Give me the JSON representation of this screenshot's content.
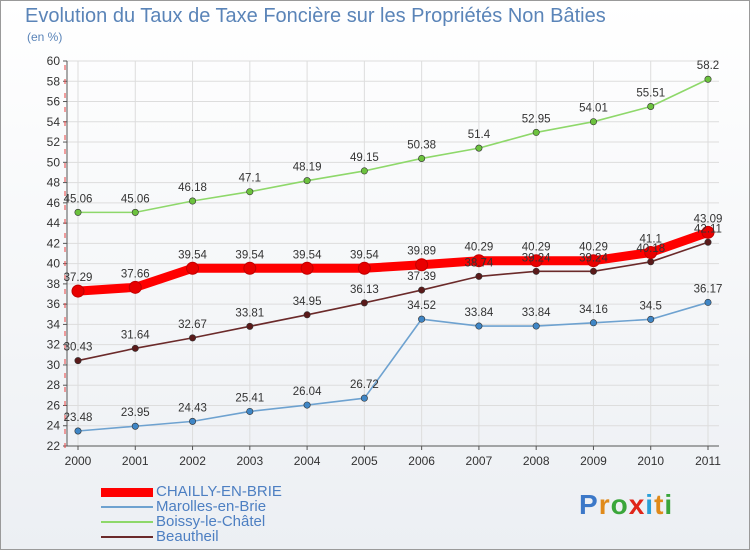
{
  "title": "Evolution du Taux de Taxe Foncière sur les Propriétés Non Bâties",
  "unit_label": "(en %)",
  "logo": {
    "text": "Proxiti",
    "letter_colors": [
      "#3c78c8",
      "#e08a1a",
      "#3aa63a",
      "#e0261a",
      "#2aa0d8",
      "#e08a1a",
      "#3aa63a"
    ]
  },
  "chart_data": {
    "type": "line",
    "title": "Evolution du Taux de Taxe Foncière sur les Propriétés Non Bâties",
    "ylabel": "(en %)",
    "xlabel": "",
    "x": [
      "2000",
      "2001",
      "2002",
      "2003",
      "2004",
      "2005",
      "2006",
      "2007",
      "2008",
      "2009",
      "2010",
      "2011"
    ],
    "ylim": [
      22,
      60
    ],
    "yticks": [
      22,
      24,
      26,
      28,
      30,
      32,
      34,
      36,
      38,
      40,
      42,
      44,
      46,
      48,
      50,
      52,
      54,
      56,
      58,
      60
    ],
    "grid": true,
    "legend": "bottom-left",
    "series": [
      {
        "name": "CHAILLY-EN-BRIE",
        "color": "#ff0000",
        "point_color": "#e80000",
        "values": [
          37.29,
          37.66,
          39.54,
          39.54,
          39.54,
          39.54,
          39.89,
          40.29,
          40.29,
          40.29,
          41.1,
          43.09
        ],
        "labels": [
          "37.29",
          "37.66",
          "39.54",
          "39.54",
          "39.54",
          "39.54",
          "39.89",
          "40.29",
          "40.29",
          "40.29",
          "41.1",
          "43.09"
        ]
      },
      {
        "name": "Marolles-en-Brie",
        "color": "#6ea2d0",
        "point_color": "#3f86c6",
        "values": [
          23.48,
          23.95,
          24.43,
          25.41,
          26.04,
          26.72,
          34.52,
          33.84,
          33.84,
          34.16,
          34.5,
          36.17
        ],
        "labels": [
          "23.48",
          "23.95",
          "24.43",
          "25.41",
          "26.04",
          "26.72",
          "34.52",
          "33.84",
          "33.84",
          "34.16",
          "34.5",
          "36.17"
        ]
      },
      {
        "name": "Boissy-le-Châtel",
        "color": "#8ed86a",
        "point_color": "#6cc23e",
        "values": [
          45.06,
          45.06,
          46.18,
          47.1,
          48.19,
          49.15,
          50.38,
          51.4,
          52.95,
          54.01,
          55.51,
          58.2
        ],
        "labels": [
          "45.06",
          "45.06",
          "46.18",
          "47.1",
          "48.19",
          "49.15",
          "50.38",
          "51.4",
          "52.95",
          "54.01",
          "55.51",
          "58.2"
        ]
      },
      {
        "name": "Beautheil",
        "color": "#6b2a2a",
        "point_color": "#5a1a1a",
        "values": [
          30.43,
          31.64,
          32.67,
          33.81,
          34.95,
          36.13,
          37.39,
          38.74,
          39.24,
          39.24,
          40.18,
          42.11
        ],
        "labels": [
          "30.43",
          "31.64",
          "32.67",
          "33.81",
          "34.95",
          "36.13",
          "37.39",
          "38.74",
          "39.24",
          "39.24",
          "40.18",
          "42.11"
        ]
      }
    ]
  }
}
